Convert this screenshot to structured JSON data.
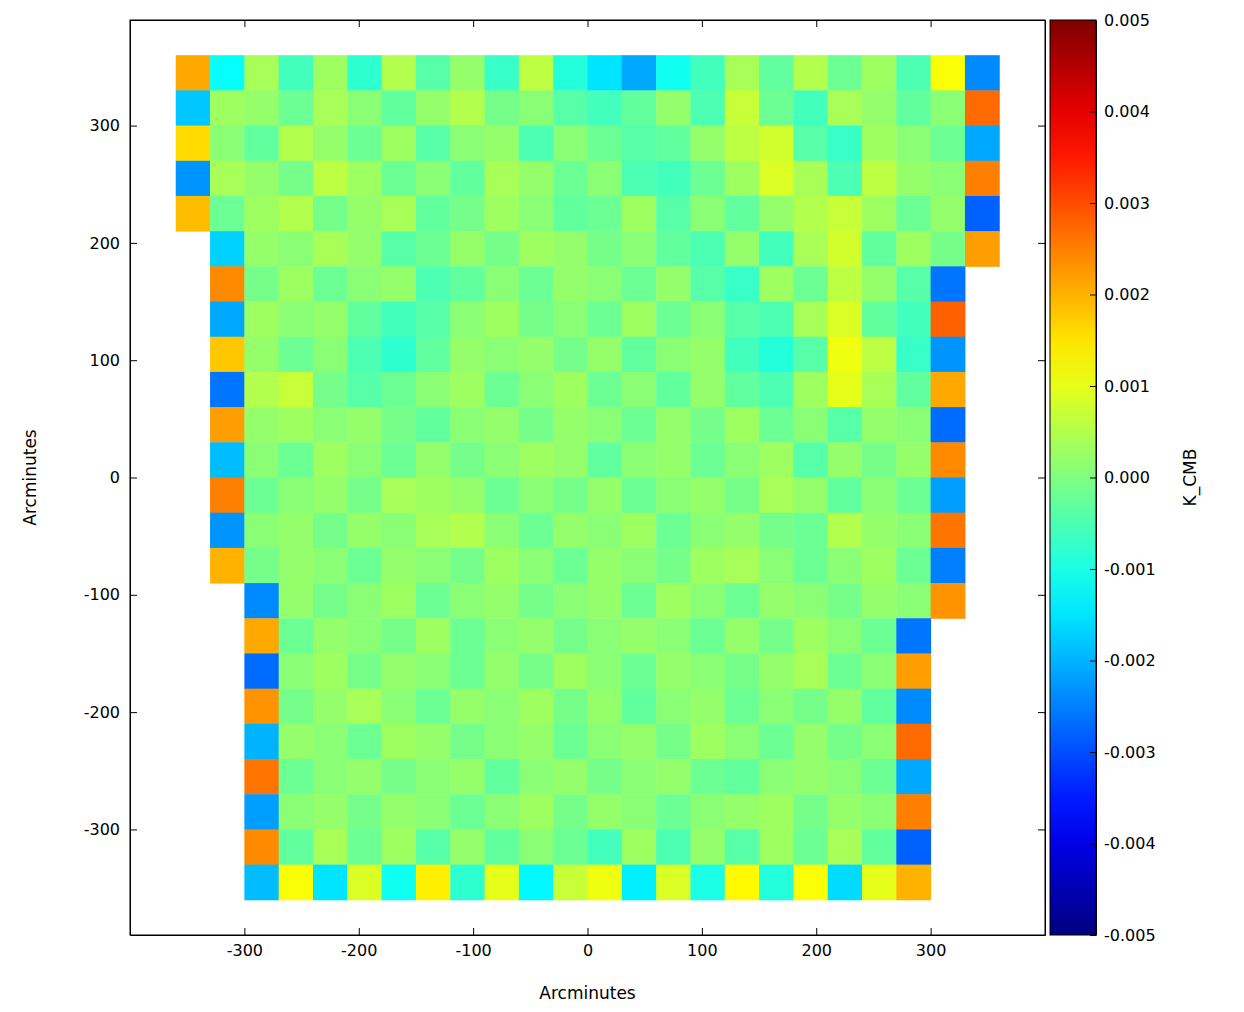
{
  "chart_data": {
    "type": "heatmap",
    "xlabel": "Arcminutes",
    "ylabel": "Arcminutes",
    "xlim": [
      -400,
      400
    ],
    "ylim": [
      -390,
      390
    ],
    "xticks": [
      -300,
      -200,
      -100,
      0,
      100,
      200,
      300
    ],
    "yticks": [
      -300,
      -200,
      -100,
      0,
      100,
      200,
      300
    ],
    "x": [
      -345,
      -315,
      -285,
      -255,
      -225,
      -195,
      -165,
      -135,
      -105,
      -75,
      -45,
      -15,
      15,
      45,
      75,
      105,
      135,
      165,
      195,
      225,
      255,
      285,
      315,
      345
    ],
    "y": [
      345,
      315,
      285,
      255,
      225,
      195,
      165,
      135,
      105,
      75,
      45,
      15,
      -15,
      -45,
      -75,
      -105,
      -135,
      -165,
      -195,
      -225,
      -255,
      -285,
      -315,
      -345
    ],
    "cells": [
      [
        0.0021,
        -0.0012,
        0.0004,
        -0.0006,
        0.0003,
        -0.0008,
        0.0005,
        -0.0004,
        0.0002,
        -0.0007,
        0.0006,
        -0.0009,
        -0.0015,
        -0.0021,
        -0.0011,
        -0.0006,
        0.0004,
        -0.0003,
        0.0005,
        -0.0002,
        0.0003,
        -0.0005,
        0.0012,
        -0.0024
      ],
      [
        -0.0018,
        0.0003,
        0.0002,
        -0.0002,
        0.0004,
        0.0001,
        -0.0003,
        0.0002,
        0.0005,
        -0.0001,
        0.0001,
        -0.0004,
        -0.0006,
        -0.0003,
        0.0002,
        -0.0005,
        0.0007,
        -0.0002,
        -0.0006,
        0.0004,
        0.0002,
        -0.0003,
        0.0001,
        0.0027
      ],
      [
        0.0016,
        0.0001,
        -0.0003,
        0.0005,
        0.0002,
        -0.0002,
        0.0003,
        -0.0004,
        0.0001,
        0.0002,
        -0.0005,
        0.0001,
        -0.0002,
        -0.0004,
        -0.0003,
        0.0002,
        0.0006,
        0.0008,
        -0.0004,
        -0.0007,
        0.0003,
        0.0001,
        -0.0002,
        -0.0021
      ],
      [
        -0.0023,
        0.0004,
        0.0002,
        -0.0001,
        0.0006,
        0.0003,
        -0.0002,
        0.0001,
        -0.0003,
        0.0004,
        0.0002,
        -0.0002,
        0.0001,
        -0.0005,
        -0.0006,
        -0.0002,
        0.0003,
        0.0009,
        0.0004,
        -0.0005,
        0.0006,
        0.0002,
        0.0001,
        0.0025
      ],
      [
        0.0019,
        -0.0002,
        0.0003,
        0.0005,
        -0.0001,
        0.0002,
        0.0004,
        -0.0003,
        -0.0001,
        0.0003,
        0.0001,
        -0.0003,
        -0.0002,
        0.0003,
        -0.0004,
        0.0001,
        -0.0003,
        0.0002,
        0.0005,
        0.0007,
        0.0003,
        -0.0002,
        0.0002,
        -0.0028
      ],
      [
        null,
        -0.0017,
        0.0002,
        0.0001,
        0.0004,
        0.0002,
        -0.0004,
        -0.0002,
        0.0002,
        -0.0001,
        0.0003,
        0.0002,
        -0.0001,
        0.0001,
        -0.0003,
        -0.0005,
        0.0002,
        -0.0006,
        0.0004,
        0.0008,
        -0.0003,
        0.0003,
        -0.0001,
        0.0022
      ],
      [
        null,
        0.0024,
        -0.0001,
        0.0003,
        -0.0002,
        0.0001,
        0.0002,
        -0.0005,
        -0.0003,
        0.0001,
        -0.0002,
        0.0002,
        0.0001,
        -0.0002,
        0.0002,
        -0.0004,
        -0.0007,
        0.0003,
        -0.0002,
        0.0006,
        0.0002,
        -0.0004,
        -0.0026,
        null
      ],
      [
        null,
        -0.0021,
        0.0003,
        0.0001,
        0.0002,
        -0.0003,
        -0.0006,
        -0.0004,
        0.0001,
        0.0003,
        -0.0001,
        0.0001,
        -0.0002,
        0.0003,
        -0.0002,
        0.0001,
        -0.0004,
        -0.0005,
        0.0004,
        0.0009,
        -0.0003,
        -0.0006,
        0.0028,
        null
      ],
      [
        null,
        0.0018,
        0.0002,
        -0.0002,
        0.0001,
        -0.0005,
        -0.0008,
        -0.0003,
        0.0002,
        0.0001,
        0.0002,
        -0.0001,
        0.0002,
        -0.0003,
        0.0001,
        0.0002,
        -0.0006,
        -0.0009,
        -0.0004,
        0.0011,
        0.0006,
        -0.0007,
        -0.0023,
        null
      ],
      [
        null,
        -0.0026,
        0.0005,
        0.0007,
        -0.0001,
        -0.0004,
        -0.0002,
        0.0001,
        0.0003,
        -0.0002,
        0.0001,
        0.0003,
        -0.0002,
        0.0001,
        -0.0003,
        0.0002,
        -0.0003,
        -0.0005,
        0.0003,
        0.001,
        0.0004,
        -0.0003,
        0.0021,
        null
      ],
      [
        null,
        0.0022,
        0.0002,
        0.0003,
        0.0001,
        0.0002,
        -0.0001,
        -0.0003,
        0.0001,
        0.0002,
        -0.0001,
        0.0002,
        0.0001,
        -0.0002,
        0.0002,
        -0.0001,
        0.0003,
        -0.0002,
        0.0001,
        -0.0004,
        0.0002,
        0.0001,
        -0.0027,
        null
      ],
      [
        null,
        -0.0019,
        0.0001,
        -0.0002,
        0.0003,
        0.0001,
        -0.0002,
        0.0002,
        -0.0001,
        0.0001,
        0.0003,
        0.0002,
        -0.0003,
        0.0001,
        0.0002,
        -0.0002,
        0.0001,
        0.0003,
        -0.0004,
        0.0002,
        -0.0001,
        0.0002,
        0.0024,
        null
      ],
      [
        null,
        0.0025,
        -0.0002,
        0.0001,
        0.0002,
        -0.0001,
        0.0004,
        0.0003,
        0.0002,
        -0.0002,
        0.0001,
        -0.0001,
        0.0002,
        -0.0002,
        0.0001,
        0.0002,
        -0.0001,
        0.0004,
        0.0002,
        -0.0003,
        0.0001,
        -0.0002,
        -0.0022,
        null
      ],
      [
        null,
        -0.0023,
        0.0001,
        0.0002,
        -0.0001,
        0.0002,
        0.0001,
        0.0004,
        0.0005,
        0.0001,
        -0.0002,
        0.0002,
        0.0001,
        0.0003,
        -0.0002,
        0.0001,
        0.0002,
        -0.0001,
        -0.0002,
        0.0005,
        0.0002,
        0.0001,
        0.0026,
        null
      ],
      [
        null,
        0.002,
        -0.0001,
        0.0002,
        0.0001,
        -0.0002,
        0.0002,
        0.0001,
        -0.0001,
        0.0003,
        0.0001,
        -0.0002,
        0.0002,
        0.0001,
        -0.0001,
        0.0003,
        0.0004,
        0.0001,
        -0.0002,
        0.0001,
        0.0003,
        -0.0002,
        -0.0025,
        null
      ],
      [
        null,
        null,
        -0.0024,
        0.0002,
        -0.0001,
        0.0001,
        0.0003,
        -0.0002,
        0.0001,
        0.0002,
        -0.0001,
        0.0001,
        0.0002,
        -0.0002,
        0.0003,
        0.0001,
        -0.0002,
        0.0002,
        0.0001,
        -0.0001,
        0.0002,
        0.0001,
        0.0023,
        null
      ],
      [
        null,
        null,
        0.0021,
        -0.0002,
        0.0002,
        0.0001,
        -0.0001,
        0.0003,
        -0.0002,
        0.0001,
        0.0002,
        -0.0001,
        0.0001,
        0.0002,
        0.0001,
        -0.0002,
        0.0002,
        -0.0001,
        0.0003,
        0.0001,
        -0.0002,
        -0.0026,
        null,
        null
      ],
      [
        null,
        null,
        -0.0027,
        0.0001,
        0.0003,
        -0.0001,
        0.0002,
        0.0001,
        -0.0002,
        0.0002,
        -0.0001,
        0.0003,
        0.0001,
        -0.0002,
        0.0002,
        0.0001,
        -0.0001,
        0.0002,
        0.0004,
        -0.0002,
        0.0001,
        0.0022,
        null,
        null
      ],
      [
        null,
        null,
        0.0023,
        -0.0001,
        0.0002,
        0.0004,
        0.0001,
        -0.0002,
        0.0002,
        0.0001,
        0.0003,
        -0.0001,
        0.0002,
        -0.0003,
        0.0001,
        0.0002,
        -0.0002,
        0.0001,
        -0.0001,
        0.0002,
        -0.0003,
        -0.0024,
        null,
        null
      ],
      [
        null,
        null,
        -0.002,
        0.0002,
        0.0001,
        -0.0002,
        0.0003,
        0.0002,
        -0.0001,
        0.0001,
        0.0002,
        -0.0002,
        0.0001,
        0.0002,
        -0.0001,
        0.0003,
        0.0001,
        -0.0002,
        0.0002,
        -0.0001,
        0.0001,
        0.0027,
        null,
        null
      ],
      [
        null,
        null,
        0.0026,
        -0.0002,
        0.0001,
        0.0002,
        -0.0001,
        0.0001,
        0.0002,
        -0.0003,
        0.0001,
        0.0002,
        -0.0001,
        0.0001,
        0.0002,
        -0.0002,
        -0.0003,
        0.0001,
        0.0002,
        0.0001,
        -0.0002,
        -0.0021,
        null,
        null
      ],
      [
        null,
        null,
        -0.0022,
        0.0001,
        0.0002,
        -0.0001,
        0.0002,
        0.0001,
        -0.0002,
        0.0001,
        0.0003,
        -0.0001,
        0.0002,
        0.0001,
        -0.0002,
        0.0001,
        0.0002,
        0.0003,
        -0.0001,
        0.0002,
        0.0001,
        0.0025,
        null,
        null
      ],
      [
        null,
        null,
        0.0024,
        -0.0003,
        0.0004,
        -0.0002,
        0.0003,
        -0.0004,
        0.0002,
        -0.0003,
        0.0001,
        -0.0002,
        -0.0006,
        0.0003,
        -0.0005,
        0.0002,
        -0.0004,
        0.0003,
        -0.0002,
        0.0004,
        -0.0003,
        -0.0028,
        null,
        null
      ],
      [
        null,
        null,
        -0.0019,
        0.0012,
        -0.0015,
        0.0009,
        -0.0011,
        0.0014,
        -0.0008,
        0.001,
        -0.0013,
        0.0007,
        0.0011,
        -0.0014,
        0.0009,
        -0.001,
        0.0013,
        -0.0009,
        0.0012,
        -0.0016,
        0.001,
        0.002,
        null,
        null
      ]
    ],
    "colorbar": {
      "label": "K_CMB",
      "range": [
        -0.005,
        0.005
      ],
      "ticks": [
        -0.005,
        -0.004,
        -0.003,
        -0.002,
        -0.001,
        {
          "value": 0,
          "label": "0.000"
        },
        0.001,
        0.002,
        0.003,
        0.004,
        0.005
      ]
    }
  }
}
